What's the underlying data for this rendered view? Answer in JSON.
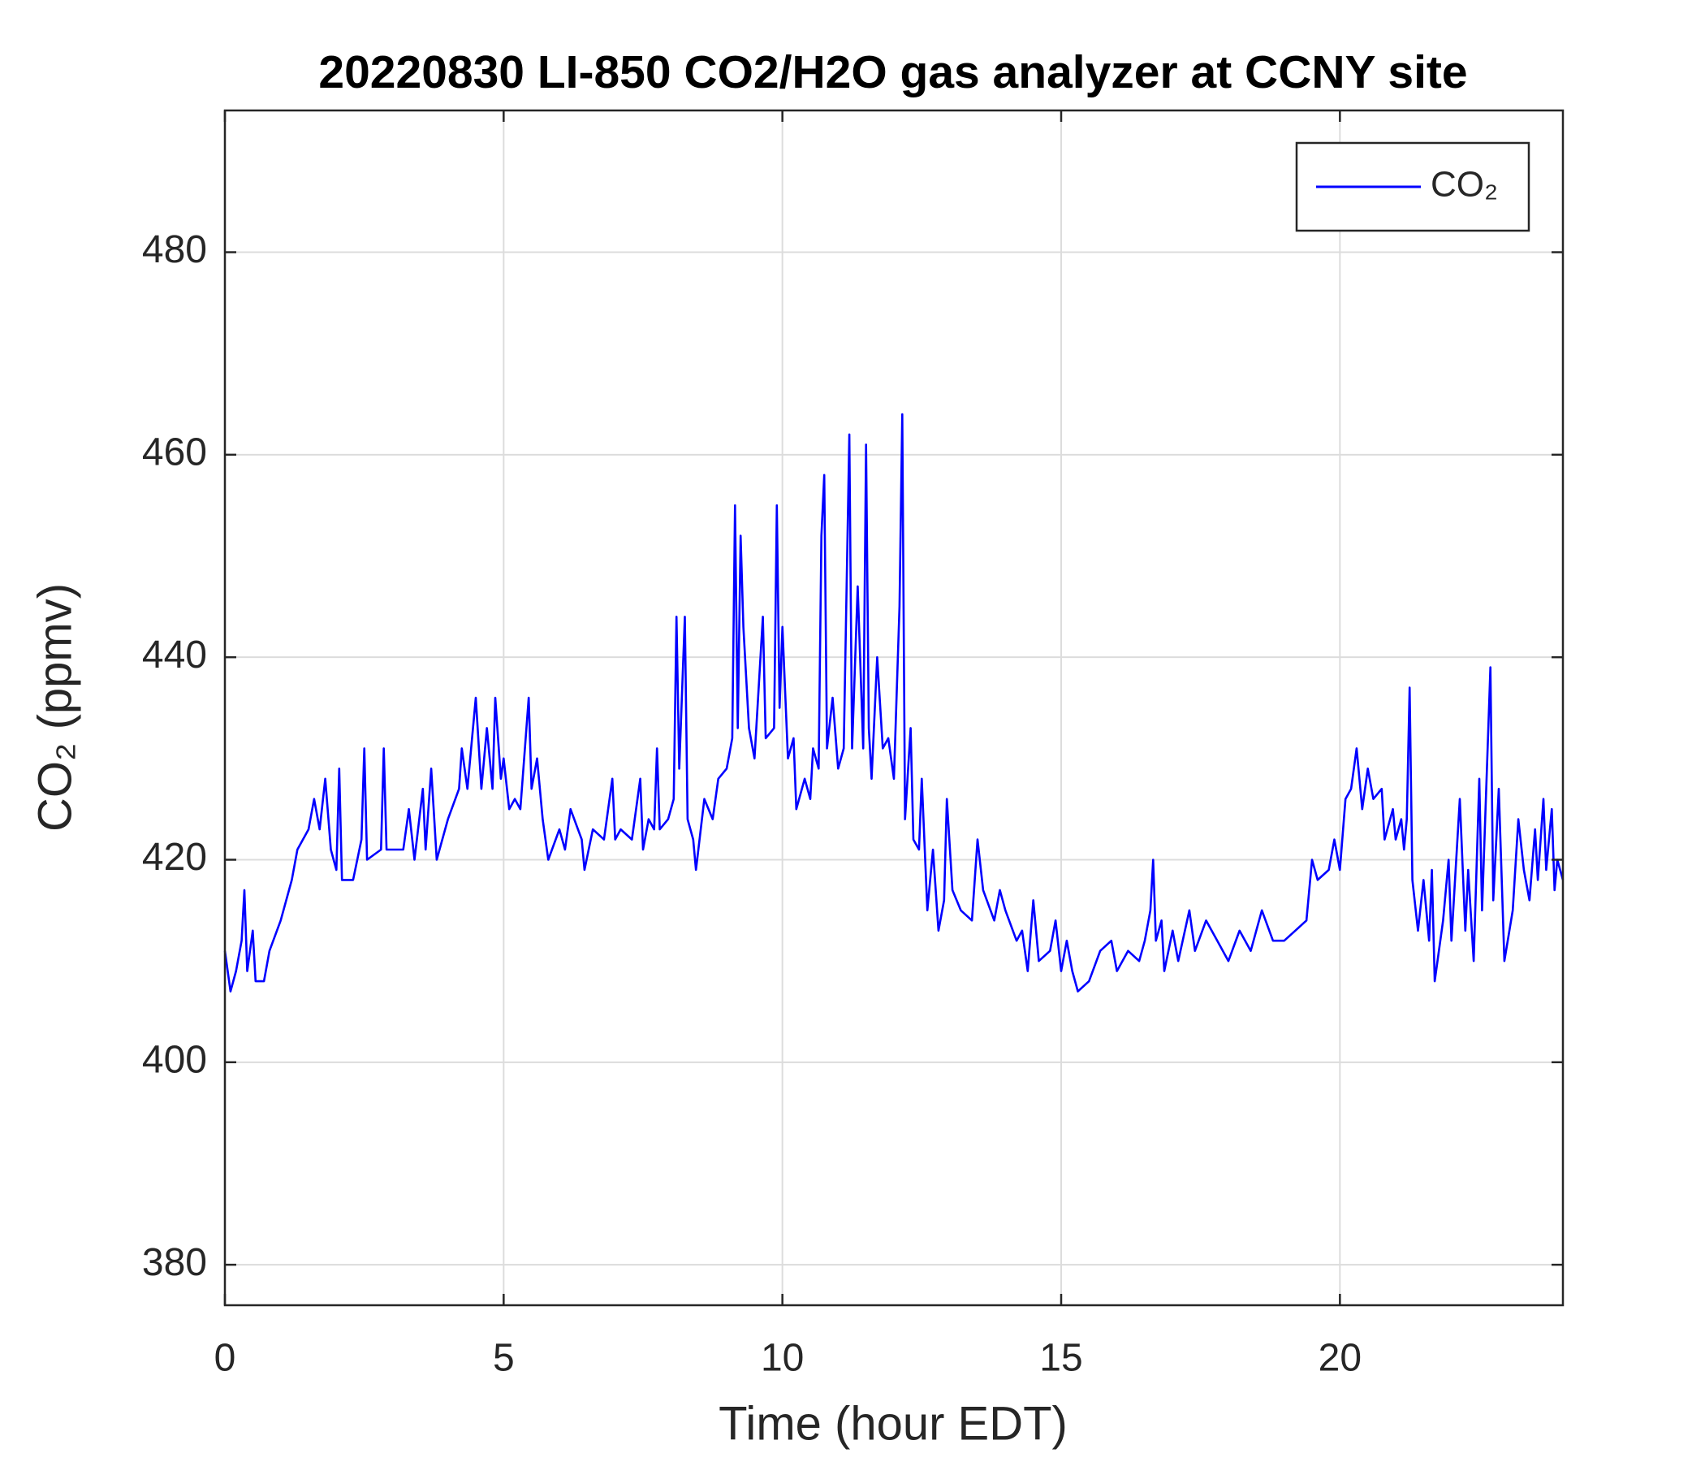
{
  "chart_data": {
    "type": "line",
    "title": "20220830 LI-850 CO2/H2O gas analyzer at CCNY site",
    "x_label": "Time (hour EDT)",
    "y_label": "CO₂ (ppmv)",
    "xlim": [
      0,
      24
    ],
    "xticks": [
      0,
      5,
      10,
      15,
      20
    ],
    "ylim": [
      376,
      494
    ],
    "yticks": [
      380,
      400,
      420,
      440,
      460,
      480
    ],
    "grid": true,
    "legend": "upper right",
    "x": [
      0,
      0.1,
      0.2,
      0.3,
      0.35,
      0.4,
      0.5,
      0.55,
      0.7,
      0.8,
      1.0,
      1.2,
      1.3,
      1.5,
      1.6,
      1.7,
      1.8,
      1.9,
      2.0,
      2.05,
      2.1,
      2.3,
      2.45,
      2.5,
      2.55,
      2.8,
      2.85,
      2.9,
      3.2,
      3.3,
      3.4,
      3.55,
      3.6,
      3.7,
      3.8,
      4.0,
      4.2,
      4.25,
      4.35,
      4.5,
      4.6,
      4.7,
      4.8,
      4.85,
      4.95,
      5.0,
      5.1,
      5.2,
      5.3,
      5.45,
      5.5,
      5.6,
      5.7,
      5.8,
      6.0,
      6.1,
      6.2,
      6.4,
      6.45,
      6.6,
      6.8,
      6.95,
      7.0,
      7.1,
      7.3,
      7.45,
      7.5,
      7.6,
      7.7,
      7.75,
      7.8,
      7.95,
      8.05,
      8.1,
      8.15,
      8.25,
      8.3,
      8.4,
      8.45,
      8.6,
      8.75,
      8.85,
      9.0,
      9.1,
      9.15,
      9.2,
      9.25,
      9.3,
      9.4,
      9.5,
      9.65,
      9.7,
      9.85,
      9.9,
      9.95,
      10.0,
      10.1,
      10.2,
      10.25,
      10.4,
      10.5,
      10.55,
      10.65,
      10.7,
      10.75,
      10.8,
      10.9,
      11.0,
      11.1,
      11.2,
      11.25,
      11.35,
      11.45,
      11.5,
      11.55,
      11.6,
      11.7,
      11.8,
      11.9,
      12.0,
      12.1,
      12.15,
      12.2,
      12.3,
      12.35,
      12.45,
      12.5,
      12.6,
      12.7,
      12.8,
      12.9,
      12.95,
      13.05,
      13.2,
      13.4,
      13.5,
      13.6,
      13.8,
      13.9,
      14.0,
      14.2,
      14.3,
      14.4,
      14.5,
      14.6,
      14.8,
      14.9,
      15.0,
      15.1,
      15.2,
      15.3,
      15.5,
      15.7,
      15.9,
      16.0,
      16.2,
      16.4,
      16.5,
      16.6,
      16.65,
      16.7,
      16.8,
      16.85,
      17.0,
      17.1,
      17.3,
      17.4,
      17.6,
      17.8,
      18.0,
      18.2,
      18.4,
      18.6,
      18.8,
      19.0,
      19.2,
      19.4,
      19.5,
      19.6,
      19.8,
      19.9,
      20.0,
      20.1,
      20.2,
      20.3,
      20.4,
      20.5,
      20.6,
      20.75,
      20.8,
      20.95,
      21.0,
      21.1,
      21.15,
      21.2,
      21.25,
      21.3,
      21.4,
      21.5,
      21.6,
      21.65,
      21.7,
      21.85,
      21.95,
      22.0,
      22.15,
      22.25,
      22.3,
      22.4,
      22.5,
      22.55,
      22.7,
      22.75,
      22.85,
      22.95,
      23.1,
      23.2,
      23.3,
      23.4,
      23.5,
      23.55,
      23.65,
      23.7,
      23.8,
      23.85,
      23.9,
      24.0
    ],
    "series": [
      {
        "name": "CO₂",
        "color": "#0000ff",
        "values": [
          411,
          407,
          409,
          412,
          417,
          409,
          413,
          408,
          408,
          411,
          414,
          418,
          421,
          423,
          426,
          423,
          428,
          421,
          419,
          429,
          418,
          418,
          422,
          431,
          420,
          421,
          431,
          421,
          421,
          425,
          420,
          427,
          421,
          429,
          420,
          424,
          427,
          431,
          427,
          436,
          427,
          433,
          427,
          436,
          428,
          430,
          425,
          426,
          425,
          436,
          427,
          430,
          424,
          420,
          423,
          421,
          425,
          422,
          419,
          423,
          422,
          428,
          422,
          423,
          422,
          428,
          421,
          424,
          423,
          431,
          423,
          424,
          426,
          444,
          429,
          444,
          424,
          422,
          419,
          426,
          424,
          428,
          429,
          432,
          455,
          433,
          452,
          443,
          433,
          430,
          444,
          432,
          433,
          455,
          435,
          443,
          430,
          432,
          425,
          428,
          426,
          431,
          429,
          452,
          458,
          431,
          436,
          429,
          431,
          462,
          431,
          447,
          431,
          461,
          433,
          428,
          440,
          431,
          432,
          428,
          445,
          464,
          424,
          433,
          422,
          421,
          428,
          415,
          421,
          413,
          416,
          426,
          417,
          415,
          414,
          422,
          417,
          414,
          417,
          415,
          412,
          413,
          409,
          416,
          410,
          411,
          414,
          409,
          412,
          409,
          407,
          408,
          411,
          412,
          409,
          411,
          410,
          412,
          415,
          420,
          412,
          414,
          409,
          413,
          410,
          415,
          411,
          414,
          412,
          410,
          413,
          411,
          415,
          412,
          412,
          413,
          414,
          420,
          418,
          419,
          422,
          419,
          426,
          427,
          431,
          425,
          429,
          426,
          427,
          422,
          425,
          422,
          424,
          421,
          424,
          437,
          418,
          413,
          418,
          412,
          419,
          408,
          414,
          420,
          412,
          426,
          413,
          419,
          410,
          428,
          415,
          439,
          416,
          427,
          410,
          415,
          424,
          419,
          416,
          423,
          418,
          426,
          419,
          425,
          417,
          420,
          418
        ]
      }
    ]
  }
}
